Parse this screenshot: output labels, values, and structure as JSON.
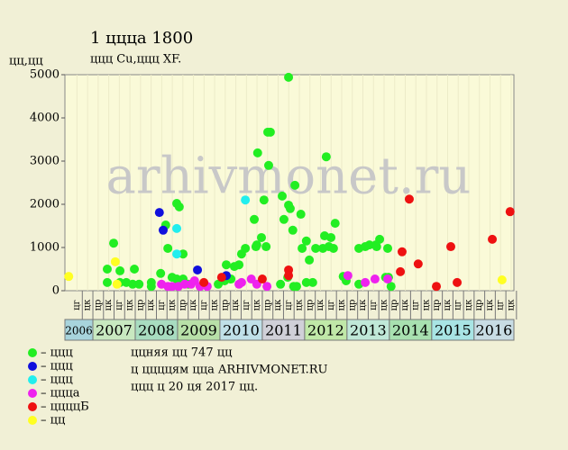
{
  "chart_data": {
    "type": "scatter",
    "title": "1 цццa 1800",
    "subtitle": "ццц Cu,ццц XF.",
    "y_label": "цц,цц",
    "watermark": "arhivmonet.ru",
    "xlim": [
      2006.34,
      2016.94
    ],
    "ylim": [
      0,
      5000
    ],
    "yticks": [
      0,
      1000,
      2000,
      3000,
      4000,
      5000
    ],
    "years": [
      {
        "value": 2006,
        "label": "2006",
        "color": "#a8d4dc"
      },
      {
        "value": 2007,
        "label": "2007",
        "color": "#c8e8c0"
      },
      {
        "value": 2008,
        "label": "2008",
        "color": "#a8dcc0"
      },
      {
        "value": 2009,
        "label": "2009",
        "color": "#b8e0a8"
      },
      {
        "value": 2010,
        "label": "2010",
        "color": "#c0e0e8"
      },
      {
        "value": 2011,
        "label": "2011",
        "color": "#d0d0d8"
      },
      {
        "value": 2012,
        "label": "2012",
        "color": "#c0e8a8"
      },
      {
        "value": 2013,
        "label": "2013",
        "color": "#c0e8d8"
      },
      {
        "value": 2014,
        "label": "2014",
        "color": "#a8e0b0"
      },
      {
        "value": 2015,
        "label": "2015",
        "color": "#a8e4e4"
      },
      {
        "value": 2016,
        "label": "2016",
        "color": "#c8dce4"
      }
    ],
    "xticks": [
      {
        "value": 2006.625,
        "label": "цг"
      },
      {
        "value": 2006.875,
        "label": "цк"
      },
      {
        "value": 2007.125,
        "label": "цр"
      },
      {
        "value": 2007.375,
        "label": "цк"
      },
      {
        "value": 2007.625,
        "label": "цг"
      },
      {
        "value": 2007.875,
        "label": "цк"
      },
      {
        "value": 2008.125,
        "label": "цр"
      },
      {
        "value": 2008.375,
        "label": "цк"
      },
      {
        "value": 2008.625,
        "label": "цг"
      },
      {
        "value": 2008.875,
        "label": "цк"
      },
      {
        "value": 2009.125,
        "label": "цр"
      },
      {
        "value": 2009.375,
        "label": "цк"
      },
      {
        "value": 2009.625,
        "label": "цг"
      },
      {
        "value": 2009.875,
        "label": "цк"
      },
      {
        "value": 2010.125,
        "label": "цр"
      },
      {
        "value": 2010.375,
        "label": "цк"
      },
      {
        "value": 2010.625,
        "label": "цг"
      },
      {
        "value": 2010.875,
        "label": "цк"
      },
      {
        "value": 2011.125,
        "label": "цр"
      },
      {
        "value": 2011.375,
        "label": "цк"
      },
      {
        "value": 2011.625,
        "label": "цг"
      },
      {
        "value": 2011.875,
        "label": "цк"
      },
      {
        "value": 2012.125,
        "label": "цр"
      },
      {
        "value": 2012.375,
        "label": "цк"
      },
      {
        "value": 2012.625,
        "label": "цг"
      },
      {
        "value": 2012.875,
        "label": "цк"
      },
      {
        "value": 2013.125,
        "label": "цр"
      },
      {
        "value": 2013.375,
        "label": "цк"
      },
      {
        "value": 2013.625,
        "label": "цг"
      },
      {
        "value": 2013.875,
        "label": "цк"
      },
      {
        "value": 2014.125,
        "label": "цр"
      },
      {
        "value": 2014.375,
        "label": "цк"
      },
      {
        "value": 2014.625,
        "label": "цг"
      },
      {
        "value": 2014.875,
        "label": "цк"
      },
      {
        "value": 2015.125,
        "label": "цр"
      },
      {
        "value": 2015.375,
        "label": "цк"
      },
      {
        "value": 2015.625,
        "label": "цг"
      },
      {
        "value": 2015.875,
        "label": "цк"
      },
      {
        "value": 2016.125,
        "label": "цр"
      },
      {
        "value": 2016.375,
        "label": "цк"
      },
      {
        "value": 2016.625,
        "label": "цг"
      },
      {
        "value": 2016.875,
        "label": "цк"
      }
    ],
    "series": [
      {
        "name": "– ццц",
        "color": "#22ee22",
        "x": [
          2007.34,
          2007.49,
          2007.64,
          2007.34,
          2007.64,
          2007.79,
          2007.94,
          2007.98,
          2008.09,
          2008.38,
          2008.38,
          2008.6,
          2008.72,
          2008.77,
          2008.87,
          2008.98,
          2009.04,
          2008.98,
          2009.13,
          2009.13,
          2009.26,
          2009.96,
          2010.11,
          2010.15,
          2010.26,
          2010.34,
          2010.45,
          2010.51,
          2010.6,
          2010.81,
          2010.87,
          2010.85,
          2010.89,
          2010.98,
          2011.04,
          2011.09,
          2011.13,
          2011.19,
          2011.15,
          2011.43,
          2011.47,
          2011.51,
          2011.6,
          2011.62,
          2011.62,
          2011.66,
          2011.72,
          2011.77,
          2011.74,
          2011.91,
          2011.81,
          2011.94,
          2012.04,
          2012.04,
          2012.11,
          2012.19,
          2012.26,
          2012.43,
          2012.47,
          2012.51,
          2012.62,
          2012.57,
          2012.68,
          2012.72,
          2012.91,
          2012.98,
          2013.28,
          2013.28,
          2013.43,
          2013.53,
          2013.68,
          2013.77,
          2013.7,
          2013.91,
          2013.96,
          2014.04,
          2013.98
        ],
        "values": [
          500,
          1100,
          460,
          190,
          190,
          190,
          150,
          500,
          150,
          190,
          100,
          400,
          1520,
          980,
          310,
          2020,
          1940,
          270,
          850,
          270,
          150,
          150,
          230,
          600,
          270,
          560,
          600,
          850,
          980,
          1650,
          1060,
          1020,
          3190,
          1230,
          2100,
          1020,
          3670,
          3670,
          2900,
          150,
          2190,
          1650,
          310,
          4940,
          1980,
          1900,
          1400,
          2440,
          100,
          1770,
          100,
          980,
          190,
          1150,
          710,
          190,
          980,
          980,
          1270,
          3100,
          1230,
          1020,
          980,
          1560,
          330,
          230,
          150,
          980,
          1020,
          1060,
          1060,
          1190,
          1020,
          310,
          980,
          100,
          310
        ]
      },
      {
        "name": "– ццц",
        "color": "#1010dd",
        "x": [
          2008.57,
          2008.66,
          2009.47,
          2010.15
        ],
        "values": [
          1810,
          1400,
          480,
          350
        ]
      },
      {
        "name": "– ццц",
        "color": "#22eeee",
        "x": [
          2008.98,
          2008.98,
          2010.6
        ],
        "values": [
          1440,
          850,
          2100
        ]
      },
      {
        "name": "– ццца",
        "color": "#ee22ee",
        "x": [
          2008.62,
          2008.77,
          2008.87,
          2009.02,
          2009.17,
          2009.32,
          2009.4,
          2009.53,
          2009.7,
          2010.45,
          2010.51,
          2010.74,
          2010.87,
          2011.11,
          2013.02,
          2013.43,
          2013.66,
          2013.96
        ],
        "values": [
          150,
          100,
          100,
          100,
          150,
          150,
          230,
          100,
          100,
          150,
          190,
          270,
          150,
          100,
          350,
          190,
          270,
          270
        ]
      },
      {
        "name": "– ццццБ",
        "color": "#ee1111",
        "x": [
          2009.62,
          2010.04,
          2011.0,
          2011.62,
          2011.62,
          2014.26,
          2014.3,
          2014.47,
          2014.68,
          2015.11,
          2015.45,
          2015.6,
          2016.43,
          2016.85
        ],
        "values": [
          190,
          310,
          270,
          480,
          350,
          440,
          900,
          2120,
          620,
          100,
          1020,
          190,
          1190,
          1830
        ]
      },
      {
        "name": "– цц",
        "color": "#ffff22",
        "x": [
          2006.43,
          2007.53,
          2007.57,
          2016.66
        ],
        "values": [
          330,
          670,
          150,
          250
        ]
      }
    ],
    "notes": [
      "ццняя цц 747 цц",
      "ц ццццям цца ARHIVMONET.RU",
      "ццц ц 20 ця 2017 цц."
    ]
  }
}
